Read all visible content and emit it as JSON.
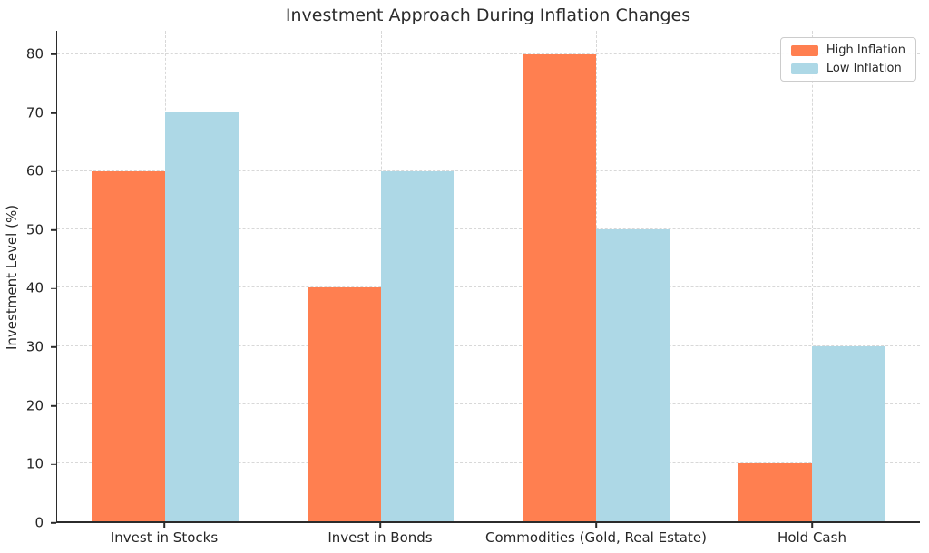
{
  "chart_data": {
    "type": "bar",
    "title": "Investment Approach During Inflation Changes",
    "ylabel": "Investment Level (%)",
    "xlabel": "",
    "categories": [
      "Invest in Stocks",
      "Invest in Bonds",
      "Commodities (Gold, Real Estate)",
      "Hold Cash"
    ],
    "series": [
      {
        "name": "High Inflation",
        "color": "#FF7F50",
        "values": [
          60,
          40,
          80,
          10
        ]
      },
      {
        "name": "Low Inflation",
        "color": "#ADD8E6",
        "values": [
          70,
          60,
          50,
          30
        ]
      }
    ],
    "ylim": [
      0,
      84
    ],
    "yticks": [
      0,
      10,
      20,
      30,
      40,
      50,
      60,
      70,
      80
    ],
    "grid": "dashed-horizontal-and-vertical",
    "legend_position": "top-right",
    "colors": {
      "grid": "#d8d8d8",
      "spine": "#2b2b2b",
      "text": "#262626",
      "background": "#ffffff"
    }
  }
}
